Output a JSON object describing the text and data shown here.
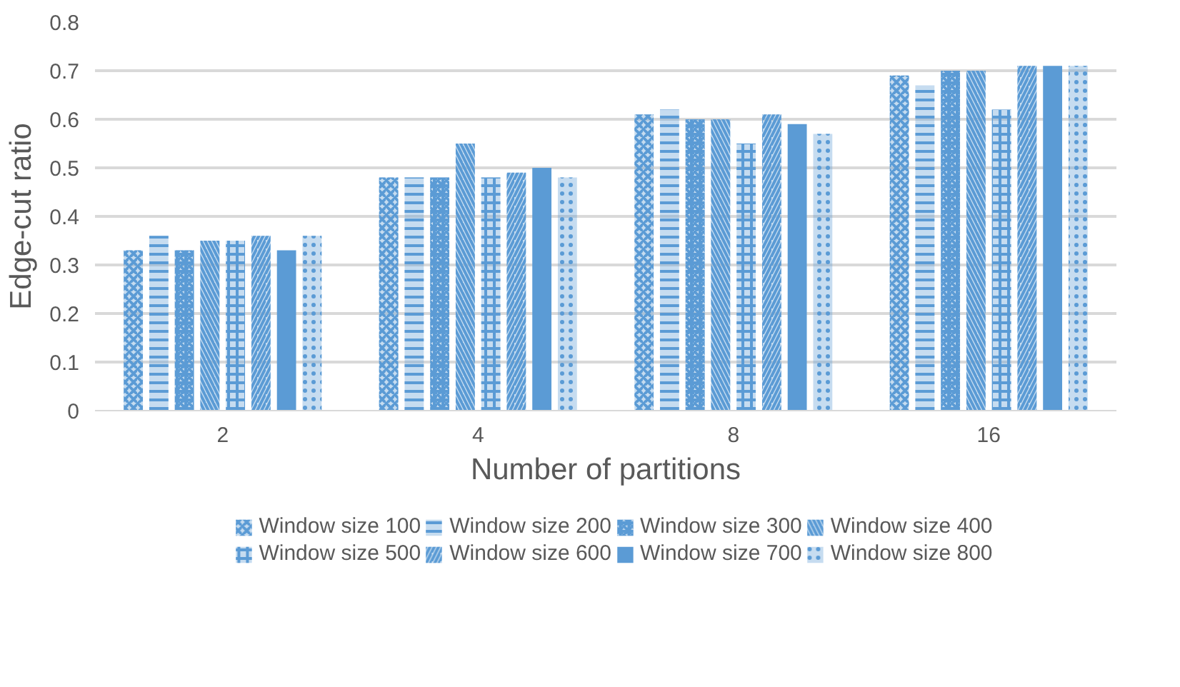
{
  "chart_data": {
    "type": "bar",
    "xlabel": "Number of partitions",
    "ylabel": "Edge-cut ratio",
    "categories": [
      "2",
      "4",
      "8",
      "16"
    ],
    "ylim": [
      0,
      0.8
    ],
    "yticks": [
      {
        "value": 0,
        "label": "0"
      },
      {
        "value": 0.1,
        "label": "0.1"
      },
      {
        "value": 0.2,
        "label": "0.2"
      },
      {
        "value": 0.3,
        "label": "0.3"
      },
      {
        "value": 0.4,
        "label": "0.4"
      },
      {
        "value": 0.5,
        "label": "0.5"
      },
      {
        "value": 0.6,
        "label": "0.6"
      },
      {
        "value": 0.7,
        "label": "0.7"
      },
      {
        "value": 0.8,
        "label": "0.8"
      }
    ],
    "grid": "y",
    "legend": "bottom",
    "series": [
      {
        "name": "Window size 100",
        "color": "#5b9bd5",
        "values": [
          0.33,
          0.48,
          0.61,
          0.69
        ]
      },
      {
        "name": "Window size 200",
        "color": "#5b9bd5",
        "values": [
          0.36,
          0.48,
          0.62,
          0.67
        ]
      },
      {
        "name": "Window size 300",
        "color": "#5b9bd5",
        "values": [
          0.33,
          0.48,
          0.6,
          0.7
        ]
      },
      {
        "name": "Window size 400",
        "color": "#5b9bd5",
        "values": [
          0.35,
          0.55,
          0.6,
          0.7
        ]
      },
      {
        "name": "Window size 500",
        "color": "#5b9bd5",
        "values": [
          0.35,
          0.48,
          0.55,
          0.62
        ]
      },
      {
        "name": "Window size 600",
        "color": "#5b9bd5",
        "values": [
          0.36,
          0.49,
          0.61,
          0.71
        ]
      },
      {
        "name": "Window size 700",
        "color": "#5b9bd5",
        "values": [
          0.33,
          0.5,
          0.59,
          0.71
        ]
      },
      {
        "name": "Window size 800",
        "color": "#5b9bd5",
        "values": [
          0.36,
          0.48,
          0.57,
          0.71
        ]
      }
    ]
  }
}
